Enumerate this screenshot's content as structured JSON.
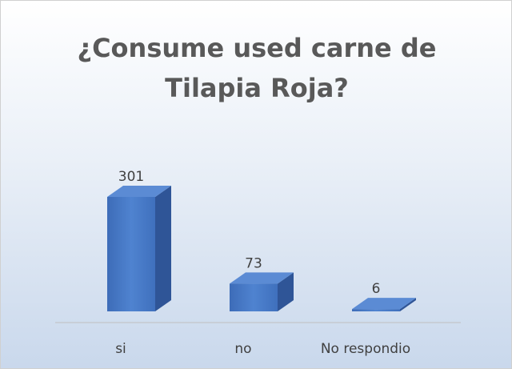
{
  "chart_data": {
    "type": "bar3d",
    "title": "¿Consume used carne de Tilapia Roja?",
    "categories": [
      "si",
      "no",
      "No respondio"
    ],
    "values": [
      301,
      73,
      6
    ],
    "color": "#4a7cc7"
  }
}
